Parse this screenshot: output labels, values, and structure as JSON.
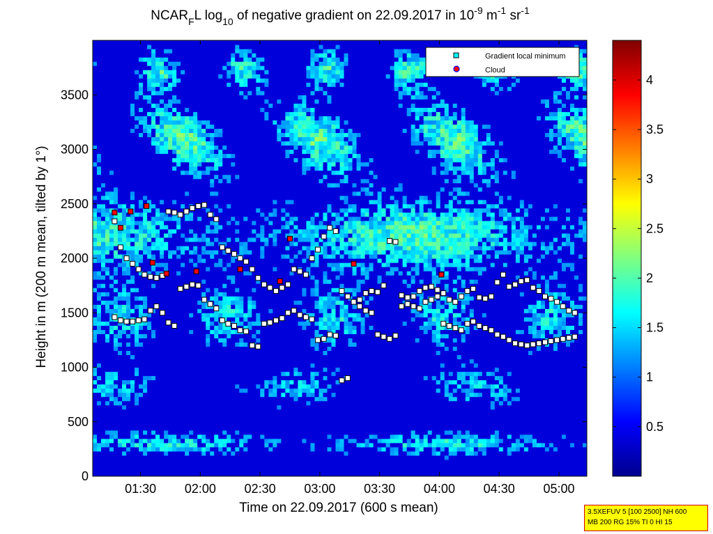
{
  "chart_data": {
    "type": "heatmap",
    "title_parts": {
      "pre": "NCAR",
      "sub1": "F",
      "mid1": "L log",
      "sub2": "10",
      "mid2": " of negative gradient on 22.09.2017 in 10",
      "sup1": "-9",
      "mid3": " m",
      "sup2": "-1",
      "mid4": " sr",
      "sup3": "-1"
    },
    "xlabel": "Time on 22.09.2017 (600 s mean)",
    "ylabel": "Height in m (200 m mean, tilted by 1°)",
    "x_ticks": [
      "01:30",
      "02:00",
      "02:30",
      "03:00",
      "03:30",
      "04:00",
      "04:30",
      "05:00"
    ],
    "y_ticks": [
      0,
      500,
      1000,
      1500,
      2000,
      2500,
      3000,
      3500
    ],
    "ylim": [
      0,
      4000
    ],
    "colorbar": {
      "ticks": [
        0.5,
        1,
        1.5,
        2,
        2.5,
        3,
        3.5,
        4
      ],
      "range": [
        0,
        4.4
      ],
      "colormap": "jet"
    },
    "legend": {
      "position": "top-right",
      "entries": [
        {
          "label": "Gradient local minimum",
          "marker": "square",
          "color": "#00ffff"
        },
        {
          "label": "Cloud",
          "marker": "circle",
          "color": "#ff0000"
        }
      ]
    },
    "series": [
      {
        "name": "Gradient local minimum",
        "time_min": [
          77,
          80,
          83,
          86,
          89,
          92,
          95,
          98,
          101,
          104,
          107,
          110,
          113,
          116,
          119,
          122,
          125,
          128,
          131,
          134,
          137,
          140,
          143,
          146,
          149,
          152,
          155,
          158,
          161,
          164,
          167,
          170,
          173,
          176,
          179,
          182,
          185,
          188,
          191,
          194,
          197,
          200,
          203,
          206,
          209,
          212,
          215,
          218,
          221,
          224,
          227,
          230,
          233,
          236,
          239,
          242,
          245,
          248,
          251,
          254,
          257,
          260,
          263,
          266,
          269,
          272,
          275,
          278,
          281,
          284,
          287,
          290,
          293,
          296,
          299,
          302,
          305,
          308
        ],
        "layer_upper_m": [
          2340,
          2100,
          2000,
          1950,
          1900,
          1850,
          1830,
          1820,
          1840,
          2430,
          2420,
          2400,
          2430,
          2460,
          2480,
          2490,
          2400,
          2360,
          2100,
          2070,
          2040,
          2000,
          1970,
          1900,
          1820,
          1760,
          1730,
          1700,
          1730,
          1760,
          1900,
          1880,
          1850,
          2000,
          2080,
          2200,
          2280,
          2250,
          1700,
          1650,
          1600,
          1620,
          1680,
          1700,
          1690,
          1750,
          2160,
          2150,
          1660,
          1640,
          1650,
          1700,
          1730,
          1740,
          1710,
          1680,
          1620,
          1600,
          1650,
          1700,
          1720,
          1640,
          1630,
          1650,
          1780,
          1850,
          1740,
          1760,
          1790,
          1800,
          1730,
          1700,
          1650,
          1630,
          1600,
          1560,
          1520,
          1500
        ],
        "layer_lower_m": [
          1460,
          1430,
          1420,
          1420,
          1430,
          1440,
          1520,
          1560,
          1500,
          1410,
          1380,
          1720,
          1740,
          1760,
          1750,
          1620,
          1580,
          1540,
          1430,
          1400,
          1380,
          1340,
          1330,
          1200,
          1190,
          1400,
          1410,
          1430,
          1450,
          1500,
          1520,
          1480,
          1460,
          1440,
          1250,
          1260,
          1300,
          1290,
          880,
          900,
          1600,
          1560,
          1520,
          1500,
          1300,
          1280,
          1260,
          1290,
          1560,
          1580,
          1560,
          1540,
          1600,
          1620,
          1650,
          1400,
          1380,
          1360,
          1340,
          1400,
          1420,
          1380,
          1360,
          1340,
          1300,
          1280,
          1250,
          1220,
          1210,
          1200,
          1210,
          1220,
          1230,
          1240,
          1250,
          1260,
          1270,
          1280
        ]
      },
      {
        "name": "Cloud",
        "time_min": [
          77,
          80,
          85,
          93,
          96,
          103,
          118,
          140,
          160,
          165,
          197,
          241
        ],
        "height_m": [
          2420,
          2280,
          2430,
          2480,
          1960,
          1860,
          1880,
          1900,
          1790,
          2180,
          1950,
          1850
        ]
      }
    ]
  },
  "info_box": {
    "line1": "3.5XEFUV 5 [100 2500] NH 600",
    "line2": "MB 200 RG 15% TI 0 HI 15"
  }
}
